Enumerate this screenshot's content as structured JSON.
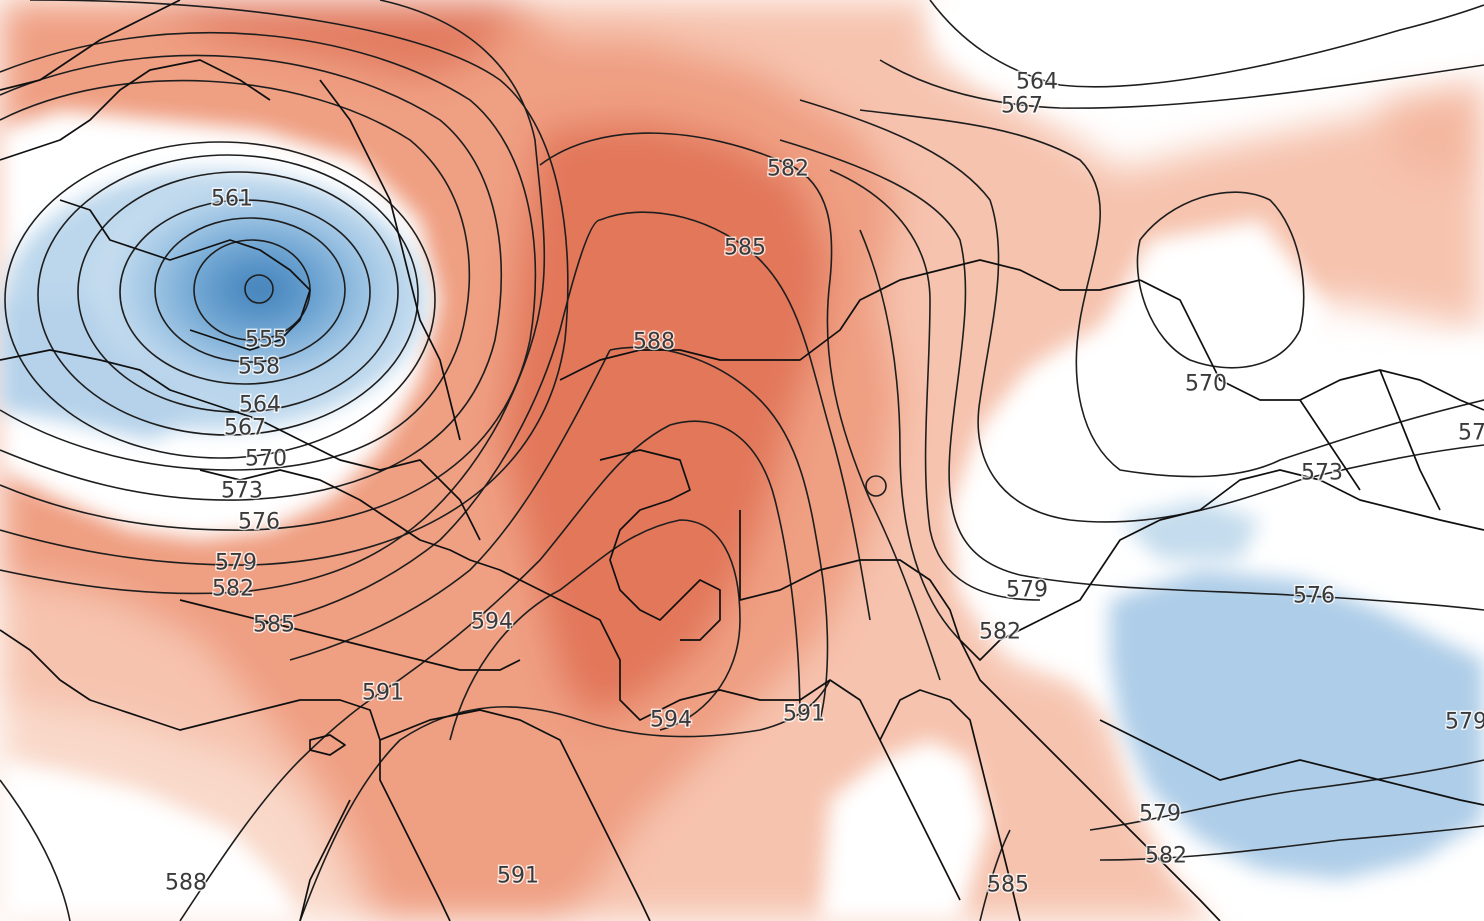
{
  "map": {
    "title": "",
    "contour_unit": "",
    "colors": {
      "anomaly_warm_1": "#f9d7c6",
      "anomaly_warm_2": "#f3b198",
      "anomaly_warm_3": "#eb8d6e",
      "anomaly_warm_4": "#e07658",
      "anomaly_cold_1": "#c9e0f0",
      "anomaly_cold_2": "#a7cae6",
      "anomaly_cold_3": "#7fb1d9",
      "anomaly_cold_4": "#5b96c8",
      "contour_line": "#1e1e1e",
      "border_line": "#101010",
      "background": "#ffffff"
    },
    "contour_labels": [
      "561",
      "555",
      "558",
      "564",
      "567",
      "570",
      "573",
      "576",
      "579",
      "582",
      "585",
      "594",
      "591",
      "594",
      "591",
      "588",
      "588",
      "591",
      "585",
      "582",
      "564",
      "567",
      "579",
      "582",
      "570",
      "573",
      "57",
      "576",
      "579",
      "579",
      "582",
      "585"
    ]
  }
}
